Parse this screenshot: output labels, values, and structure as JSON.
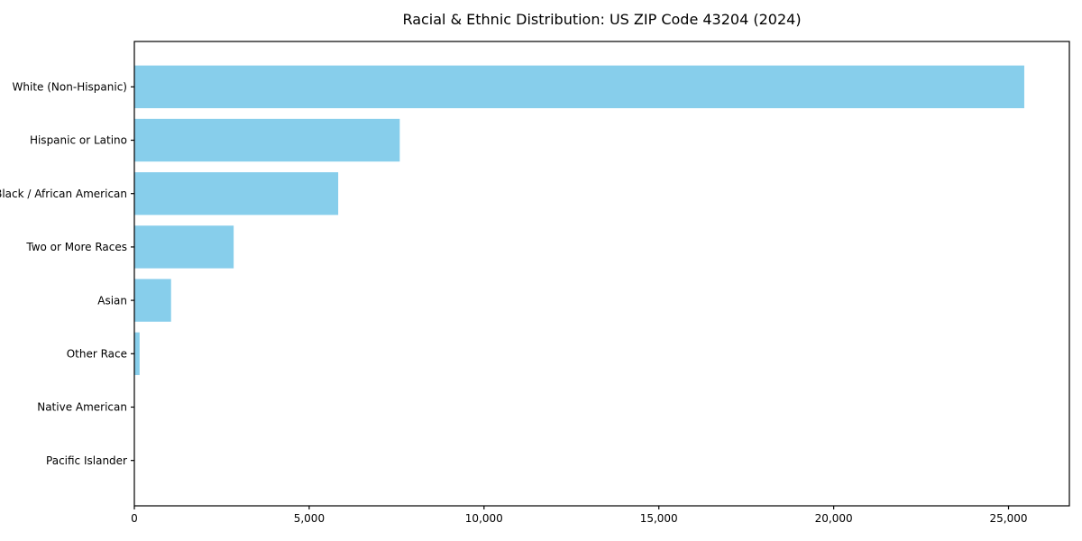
{
  "chart_data": {
    "type": "bar",
    "orientation": "horizontal",
    "title": "Racial & Ethnic Distribution: US ZIP Code 43204 (2024)",
    "categories": [
      "White (Non-Hispanic)",
      "Hispanic or Latino",
      "Black / African American",
      "Two or More Races",
      "Asian",
      "Other Race",
      "Native American",
      "Pacific Islander"
    ],
    "values": [
      25450,
      7590,
      5830,
      2840,
      1050,
      150,
      0,
      0
    ],
    "xlabel": "",
    "ylabel": "",
    "xlim": [
      0,
      26740
    ],
    "x_ticks": [
      0,
      5000,
      10000,
      15000,
      20000,
      25000
    ],
    "x_tick_labels": [
      "0",
      "5,000",
      "10,000",
      "15,000",
      "20,000",
      "25,000"
    ],
    "bar_color": "#87CEEB",
    "spine_color": "#000000",
    "grid": false,
    "legend": false
  }
}
